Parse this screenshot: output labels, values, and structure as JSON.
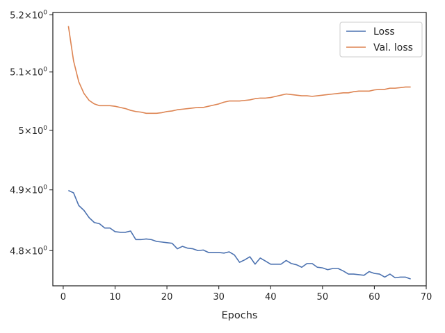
{
  "chart_data": {
    "type": "line",
    "xlabel": "Epochs",
    "ylabel": "",
    "xlim": [
      -2,
      70
    ],
    "ylim": [
      4.743,
      5.204
    ],
    "yscale": "log",
    "grid": false,
    "legend_position": "top-right",
    "x_ticks": [
      0,
      10,
      20,
      30,
      40,
      50,
      60,
      70
    ],
    "x_tick_labels": [
      "0",
      "10",
      "20",
      "30",
      "40",
      "50",
      "60",
      "70"
    ],
    "y_ticks": [
      4.8,
      4.9,
      5.0,
      5.1,
      5.2
    ],
    "y_tick_labels": [
      {
        "mantissa": "4.8",
        "base": "10",
        "exp": "0"
      },
      {
        "mantissa": "4.9",
        "base": "10",
        "exp": "0"
      },
      {
        "mantissa": "5",
        "base": "10",
        "exp": "0"
      },
      {
        "mantissa": "5.1",
        "base": "10",
        "exp": "0"
      },
      {
        "mantissa": "5.2",
        "base": "10",
        "exp": "0"
      }
    ],
    "x": [
      1,
      2,
      3,
      4,
      5,
      6,
      7,
      8,
      9,
      10,
      11,
      12,
      13,
      14,
      15,
      16,
      17,
      18,
      19,
      20,
      21,
      22,
      23,
      24,
      25,
      26,
      27,
      28,
      29,
      30,
      31,
      32,
      33,
      34,
      35,
      36,
      37,
      38,
      39,
      40,
      41,
      42,
      43,
      44,
      45,
      46,
      47,
      48,
      49,
      50,
      51,
      52,
      53,
      54,
      55,
      56,
      57,
      58,
      59,
      60,
      61,
      62,
      63,
      64,
      65,
      66,
      67
    ],
    "series": [
      {
        "name": "Loss",
        "color": "#4c72b0",
        "values": [
          4.899,
          4.895,
          4.874,
          4.866,
          4.854,
          4.846,
          4.844,
          4.837,
          4.837,
          4.831,
          4.83,
          4.83,
          4.832,
          4.818,
          4.818,
          4.819,
          4.818,
          4.815,
          4.814,
          4.813,
          4.812,
          4.803,
          4.807,
          4.804,
          4.803,
          4.8,
          4.801,
          4.797,
          4.797,
          4.797,
          4.796,
          4.798,
          4.793,
          4.781,
          4.785,
          4.79,
          4.778,
          4.788,
          4.783,
          4.778,
          4.778,
          4.778,
          4.784,
          4.779,
          4.777,
          4.773,
          4.779,
          4.779,
          4.773,
          4.772,
          4.769,
          4.771,
          4.771,
          4.767,
          4.762,
          4.762,
          4.761,
          4.76,
          4.766,
          4.763,
          4.762,
          4.757,
          4.762,
          4.756,
          4.757,
          4.757,
          4.754
        ]
      },
      {
        "name": "Val. loss",
        "color": "#dd8452",
        "values": [
          5.18,
          5.119,
          5.083,
          5.063,
          5.051,
          5.045,
          5.042,
          5.042,
          5.042,
          5.041,
          5.039,
          5.037,
          5.034,
          5.032,
          5.031,
          5.029,
          5.029,
          5.029,
          5.03,
          5.032,
          5.033,
          5.035,
          5.036,
          5.037,
          5.038,
          5.039,
          5.039,
          5.041,
          5.043,
          5.045,
          5.048,
          5.05,
          5.05,
          5.05,
          5.051,
          5.052,
          5.054,
          5.055,
          5.055,
          5.056,
          5.058,
          5.06,
          5.062,
          5.061,
          5.06,
          5.059,
          5.059,
          5.058,
          5.059,
          5.06,
          5.061,
          5.062,
          5.063,
          5.064,
          5.064,
          5.066,
          5.067,
          5.067,
          5.067,
          5.069,
          5.07,
          5.07,
          5.072,
          5.072,
          5.073,
          5.074,
          5.074
        ]
      }
    ]
  }
}
